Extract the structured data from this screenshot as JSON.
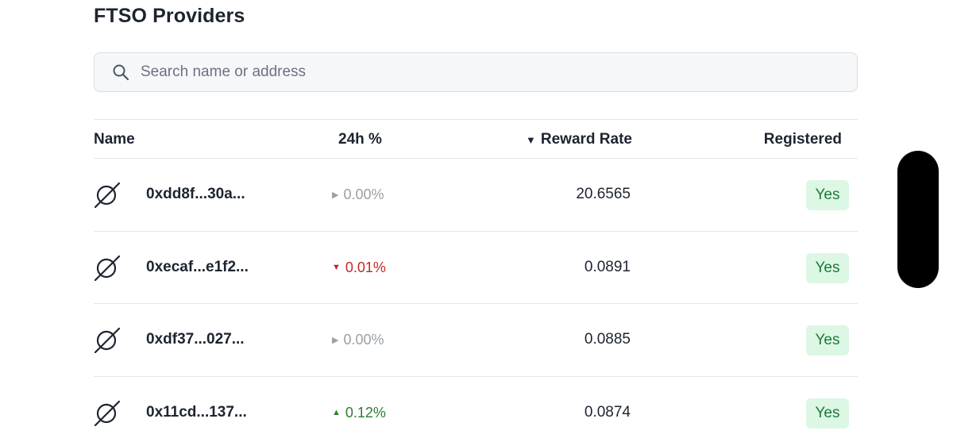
{
  "page": {
    "title": "FTSO Providers"
  },
  "search": {
    "placeholder": "Search name or address",
    "icon": "search-icon"
  },
  "table": {
    "headers": {
      "name": "Name",
      "pct": "24h %",
      "reward": "Reward Rate",
      "registered": "Registered"
    },
    "sort": {
      "column": "reward",
      "direction": "descending",
      "icon": "▼"
    },
    "rows": [
      {
        "icon": "empty-set-icon",
        "address": "0xdd8f...30a...",
        "pct": "0.00%",
        "trend": "flat",
        "trend_glyph": "▶",
        "reward": "20.6565",
        "registered": "Yes"
      },
      {
        "icon": "empty-set-icon",
        "address": "0xecaf...e1f2...",
        "pct": "0.01%",
        "trend": "down",
        "trend_glyph": "▼",
        "reward": "0.0891",
        "registered": "Yes"
      },
      {
        "icon": "empty-set-icon",
        "address": "0xdf37...027...",
        "pct": "0.00%",
        "trend": "flat",
        "trend_glyph": "▶",
        "reward": "0.0885",
        "registered": "Yes"
      },
      {
        "icon": "empty-set-icon",
        "address": "0x11cd...137...",
        "pct": "0.12%",
        "trend": "up",
        "trend_glyph": "▲",
        "reward": "0.0874",
        "registered": "Yes"
      }
    ]
  },
  "colors": {
    "flat": "#9aa0a6",
    "down": "#c62828",
    "up": "#2e7d32",
    "badge_bg": "#dcf7e3",
    "badge_text": "#1e7a3a"
  }
}
